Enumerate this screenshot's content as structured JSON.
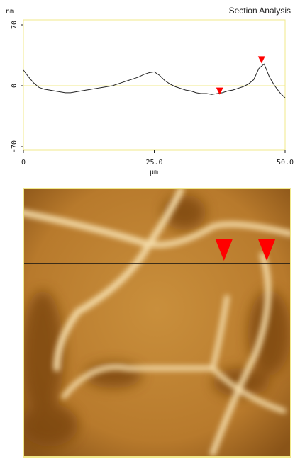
{
  "chart_data": {
    "type": "line",
    "title": "Section Analysis",
    "ylabel": "nm",
    "xlabel": "µm",
    "x": [
      0,
      1,
      2,
      3,
      4,
      5,
      6,
      7,
      8,
      9,
      10,
      11,
      12,
      13,
      14,
      15,
      16,
      17,
      18,
      19,
      20,
      21,
      22,
      23,
      24,
      25,
      26,
      27,
      28,
      29,
      30,
      31,
      32,
      33,
      34,
      35,
      36,
      37,
      38,
      39,
      40,
      41,
      42,
      43,
      44,
      45,
      46,
      47,
      48,
      49,
      50
    ],
    "series": [
      {
        "color": "#222222",
        "values": [
          18,
          10,
          3,
          -2,
          -4,
          -5,
          -6,
          -7,
          -8,
          -8,
          -7,
          -6,
          -5,
          -4,
          -3,
          -2,
          -1,
          0,
          2,
          4,
          6,
          8,
          10,
          13,
          15,
          16,
          12,
          6,
          2,
          -1,
          -3,
          -5,
          -6,
          -8,
          -9,
          -9,
          -10,
          -9,
          -8,
          -6,
          -5,
          -3,
          -1,
          2,
          7,
          20,
          25,
          10,
          0,
          -8,
          -14
        ]
      }
    ],
    "markers": {
      "color": "#ff0000",
      "x": [
        37.5,
        45.5
      ],
      "y": [
        -7,
        29
      ]
    },
    "xlim": [
      0,
      50
    ],
    "ylim": [
      -70,
      70
    ],
    "xticks": [
      0,
      {
        "value": 25,
        "label": "25.0"
      },
      {
        "value": 50,
        "label": "50.0"
      }
    ],
    "yticks": [
      70,
      0,
      -70
    ],
    "zero_line": true,
    "frame_color": "#f0e88a"
  }
}
